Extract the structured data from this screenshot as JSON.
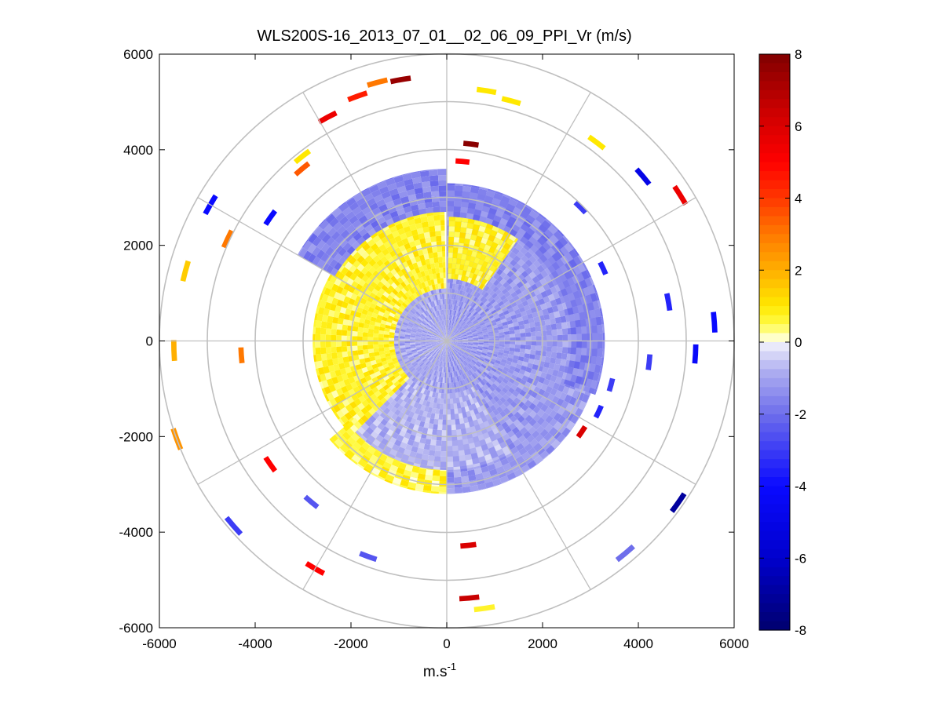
{
  "chart_data": {
    "type": "heatmap",
    "subtype": "polar-ppi",
    "title": "WLS200S-16_2013_07_01__02_06_09_PPI_Vr (m/s)",
    "xlabel_base": "m.s",
    "xlabel_sup": "-1",
    "ylabel": "",
    "xlim": [
      -6000,
      6000
    ],
    "ylim": [
      -6000,
      6000
    ],
    "x_ticks": [
      -6000,
      -4000,
      -2000,
      0,
      2000,
      4000,
      6000
    ],
    "y_ticks": [
      6000,
      4000,
      2000,
      0,
      -2000,
      -4000,
      -6000
    ],
    "x_tick_labels": [
      "-6000",
      "-4000",
      "-2000",
      "0",
      "2000",
      "4000",
      "6000"
    ],
    "y_tick_labels": [
      "6000",
      "4000",
      "2000",
      "0",
      "-2000",
      "-4000",
      "-6000"
    ],
    "polar_grid_rings_m": [
      1000,
      2000,
      3000,
      4000,
      5000,
      6000
    ],
    "polar_grid_spokes_deg": [
      0,
      30,
      60,
      90,
      120,
      150,
      180,
      210,
      240,
      270,
      300,
      330
    ],
    "colorbar": {
      "range": [
        -8,
        8
      ],
      "ticks": [
        8,
        6,
        4,
        2,
        0,
        -2,
        -4,
        -6,
        -8
      ],
      "tick_labels": [
        "8",
        "6",
        "4",
        "2",
        "0",
        "-2",
        "-4",
        "-6",
        "-8"
      ]
    },
    "velocity_zones": [
      {
        "label": "inner light-blue core",
        "r_min_m": 0,
        "r_max_m": 3200,
        "az_min_deg": 0,
        "az_max_deg": 180,
        "vr": -1.2
      },
      {
        "label": "inner light-blue core (west)",
        "r_min_m": 0,
        "r_max_m": 1100,
        "az_min_deg": 180,
        "az_max_deg": 360,
        "vr": -1.0
      },
      {
        "label": "yellow ring",
        "r_min_m": 1100,
        "r_max_m": 2800,
        "az_min_deg": 225,
        "az_max_deg": 359,
        "vr": 0.7
      },
      {
        "label": "yellow ring (north-east)",
        "r_min_m": 1300,
        "r_max_m": 2600,
        "az_min_deg": 1,
        "az_max_deg": 35,
        "vr": 0.7
      },
      {
        "label": "yellow ring (south-west)",
        "r_min_m": 2500,
        "r_max_m": 3200,
        "az_min_deg": 180,
        "az_max_deg": 230,
        "vr": 0.6
      },
      {
        "label": "light-blue south band",
        "r_min_m": 1100,
        "r_max_m": 2700,
        "az_min_deg": 150,
        "az_max_deg": 225,
        "vr": -0.8
      },
      {
        "label": "outer blue shell",
        "r_min_m": 2700,
        "r_max_m": 3600,
        "az_min_deg": 300,
        "az_max_deg": 360,
        "vr": -1.6
      },
      {
        "label": "outer blue shell (east)",
        "r_min_m": 2600,
        "r_max_m": 3300,
        "az_min_deg": 0,
        "az_max_deg": 110,
        "vr": -1.6
      }
    ],
    "scattered_gates": [
      {
        "az_deg": 350,
        "r_m": 5550,
        "vr": 7.5
      },
      {
        "az_deg": 345,
        "r_m": 5600,
        "vr": 3.0
      },
      {
        "az_deg": 340,
        "r_m": 5450,
        "vr": 4.5
      },
      {
        "az_deg": 7,
        "r_m": 4150,
        "vr": 7.8
      },
      {
        "az_deg": 5,
        "r_m": 3770,
        "vr": 5.0
      },
      {
        "az_deg": 9,
        "r_m": 5300,
        "vr": 1.0
      },
      {
        "az_deg": 15,
        "r_m": 5200,
        "vr": 1.0
      },
      {
        "az_deg": 37,
        "r_m": 5200,
        "vr": 1.0
      },
      {
        "az_deg": 50,
        "r_m": 5350,
        "vr": -5.0
      },
      {
        "az_deg": 58,
        "r_m": 5750,
        "vr": 5.5
      },
      {
        "az_deg": 45,
        "r_m": 3950,
        "vr": -3.0
      },
      {
        "az_deg": 65,
        "r_m": 3600,
        "vr": -3.5
      },
      {
        "az_deg": 80,
        "r_m": 4700,
        "vr": -3.5
      },
      {
        "az_deg": 86,
        "r_m": 5600,
        "vr": -4.0
      },
      {
        "az_deg": 93,
        "r_m": 5200,
        "vr": -4.2
      },
      {
        "az_deg": 96,
        "r_m": 4250,
        "vr": -3.0
      },
      {
        "az_deg": 105,
        "r_m": 3550,
        "vr": -3.0
      },
      {
        "az_deg": 115,
        "r_m": 3500,
        "vr": -3.5
      },
      {
        "az_deg": 124,
        "r_m": 3400,
        "vr": 6.0
      },
      {
        "az_deg": 125,
        "r_m": 5900,
        "vr": -7.0
      },
      {
        "az_deg": 140,
        "r_m": 5800,
        "vr": -2.0
      },
      {
        "az_deg": 174,
        "r_m": 4300,
        "vr": 6.0
      },
      {
        "az_deg": 175,
        "r_m": 5400,
        "vr": 6.5
      },
      {
        "az_deg": 172,
        "r_m": 5650,
        "vr": 0.7
      },
      {
        "az_deg": 200,
        "r_m": 4800,
        "vr": -2.5
      },
      {
        "az_deg": 210,
        "r_m": 5500,
        "vr": 5.0
      },
      {
        "az_deg": 220,
        "r_m": 4400,
        "vr": -2.5
      },
      {
        "az_deg": 229,
        "r_m": 5900,
        "vr": -3.0
      },
      {
        "az_deg": 235,
        "r_m": 4500,
        "vr": 5.0
      },
      {
        "az_deg": 250,
        "r_m": 6000,
        "vr": 2.5
      },
      {
        "az_deg": 268,
        "r_m": 5700,
        "vr": 2.0
      },
      {
        "az_deg": 266,
        "r_m": 4300,
        "vr": 3.0
      },
      {
        "az_deg": 285,
        "r_m": 5650,
        "vr": 1.5
      },
      {
        "az_deg": 295,
        "r_m": 5050,
        "vr": 3.0
      },
      {
        "az_deg": 300,
        "r_m": 5700,
        "vr": -4.0
      },
      {
        "az_deg": 305,
        "r_m": 4500,
        "vr": -4.0
      },
      {
        "az_deg": 320,
        "r_m": 4700,
        "vr": 3.5
      },
      {
        "az_deg": 322,
        "r_m": 4900,
        "vr": 1.0
      },
      {
        "az_deg": 332,
        "r_m": 5300,
        "vr": 5.5
      }
    ]
  }
}
